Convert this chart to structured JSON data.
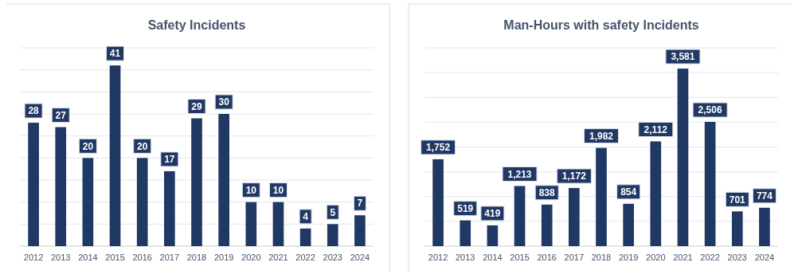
{
  "chart_data": [
    {
      "type": "bar",
      "title": "Safety Incidents",
      "categories": [
        "2012",
        "2013",
        "2014",
        "2015",
        "2016",
        "2017",
        "2018",
        "2019",
        "2020",
        "2021",
        "2022",
        "2023",
        "2024"
      ],
      "values": [
        28,
        27,
        20,
        41,
        20,
        17,
        29,
        30,
        10,
        10,
        4,
        5,
        7
      ],
      "color": "#1f3864",
      "data_labels": true,
      "grid": "y",
      "tick_labels": "x",
      "ylim": [
        0,
        45
      ],
      "yticks": [
        {
          "value": 0,
          "label": null
        },
        {
          "value": 5,
          "label": null
        },
        {
          "value": 10,
          "label": null
        },
        {
          "value": 15,
          "label": null
        },
        {
          "value": 20,
          "label": null
        },
        {
          "value": 25,
          "label": null
        },
        {
          "value": 30,
          "label": null
        },
        {
          "value": 35,
          "label": null
        },
        {
          "value": 40,
          "label": null
        },
        {
          "value": 45,
          "label": null
        }
      ]
    },
    {
      "type": "bar",
      "title": "Man-Hours with safety Incidents",
      "categories": [
        "2012",
        "2013",
        "2014",
        "2015",
        "2016",
        "2017",
        "2018",
        "2019",
        "2020",
        "2021",
        "2022",
        "2023",
        "2024"
      ],
      "values": [
        1752,
        519,
        419,
        1213,
        838,
        1172,
        1982,
        854,
        2112,
        3581,
        2506,
        701,
        774
      ],
      "color": "#1f3864",
      "grid": "y",
      "tick_labels": "x",
      "value_labels": [
        "1,752",
        "519",
        "419",
        "1,213",
        "838",
        "1,172",
        "1,982",
        "854",
        "2,112",
        "3,581",
        "2,506",
        "701",
        "774"
      ],
      "ylim": [
        0,
        4000
      ],
      "yticks": [
        {
          "value": 0,
          "label": null
        },
        {
          "value": 500,
          "label": null
        },
        {
          "value": 1000,
          "label": null
        },
        {
          "value": 1500,
          "label": null
        },
        {
          "value": 2000,
          "label": null
        },
        {
          "value": 2500,
          "label": null
        },
        {
          "value": 3000,
          "label": null
        },
        {
          "value": 3500,
          "label": null
        },
        {
          "value": 4000,
          "label": null
        }
      ]
    }
  ]
}
